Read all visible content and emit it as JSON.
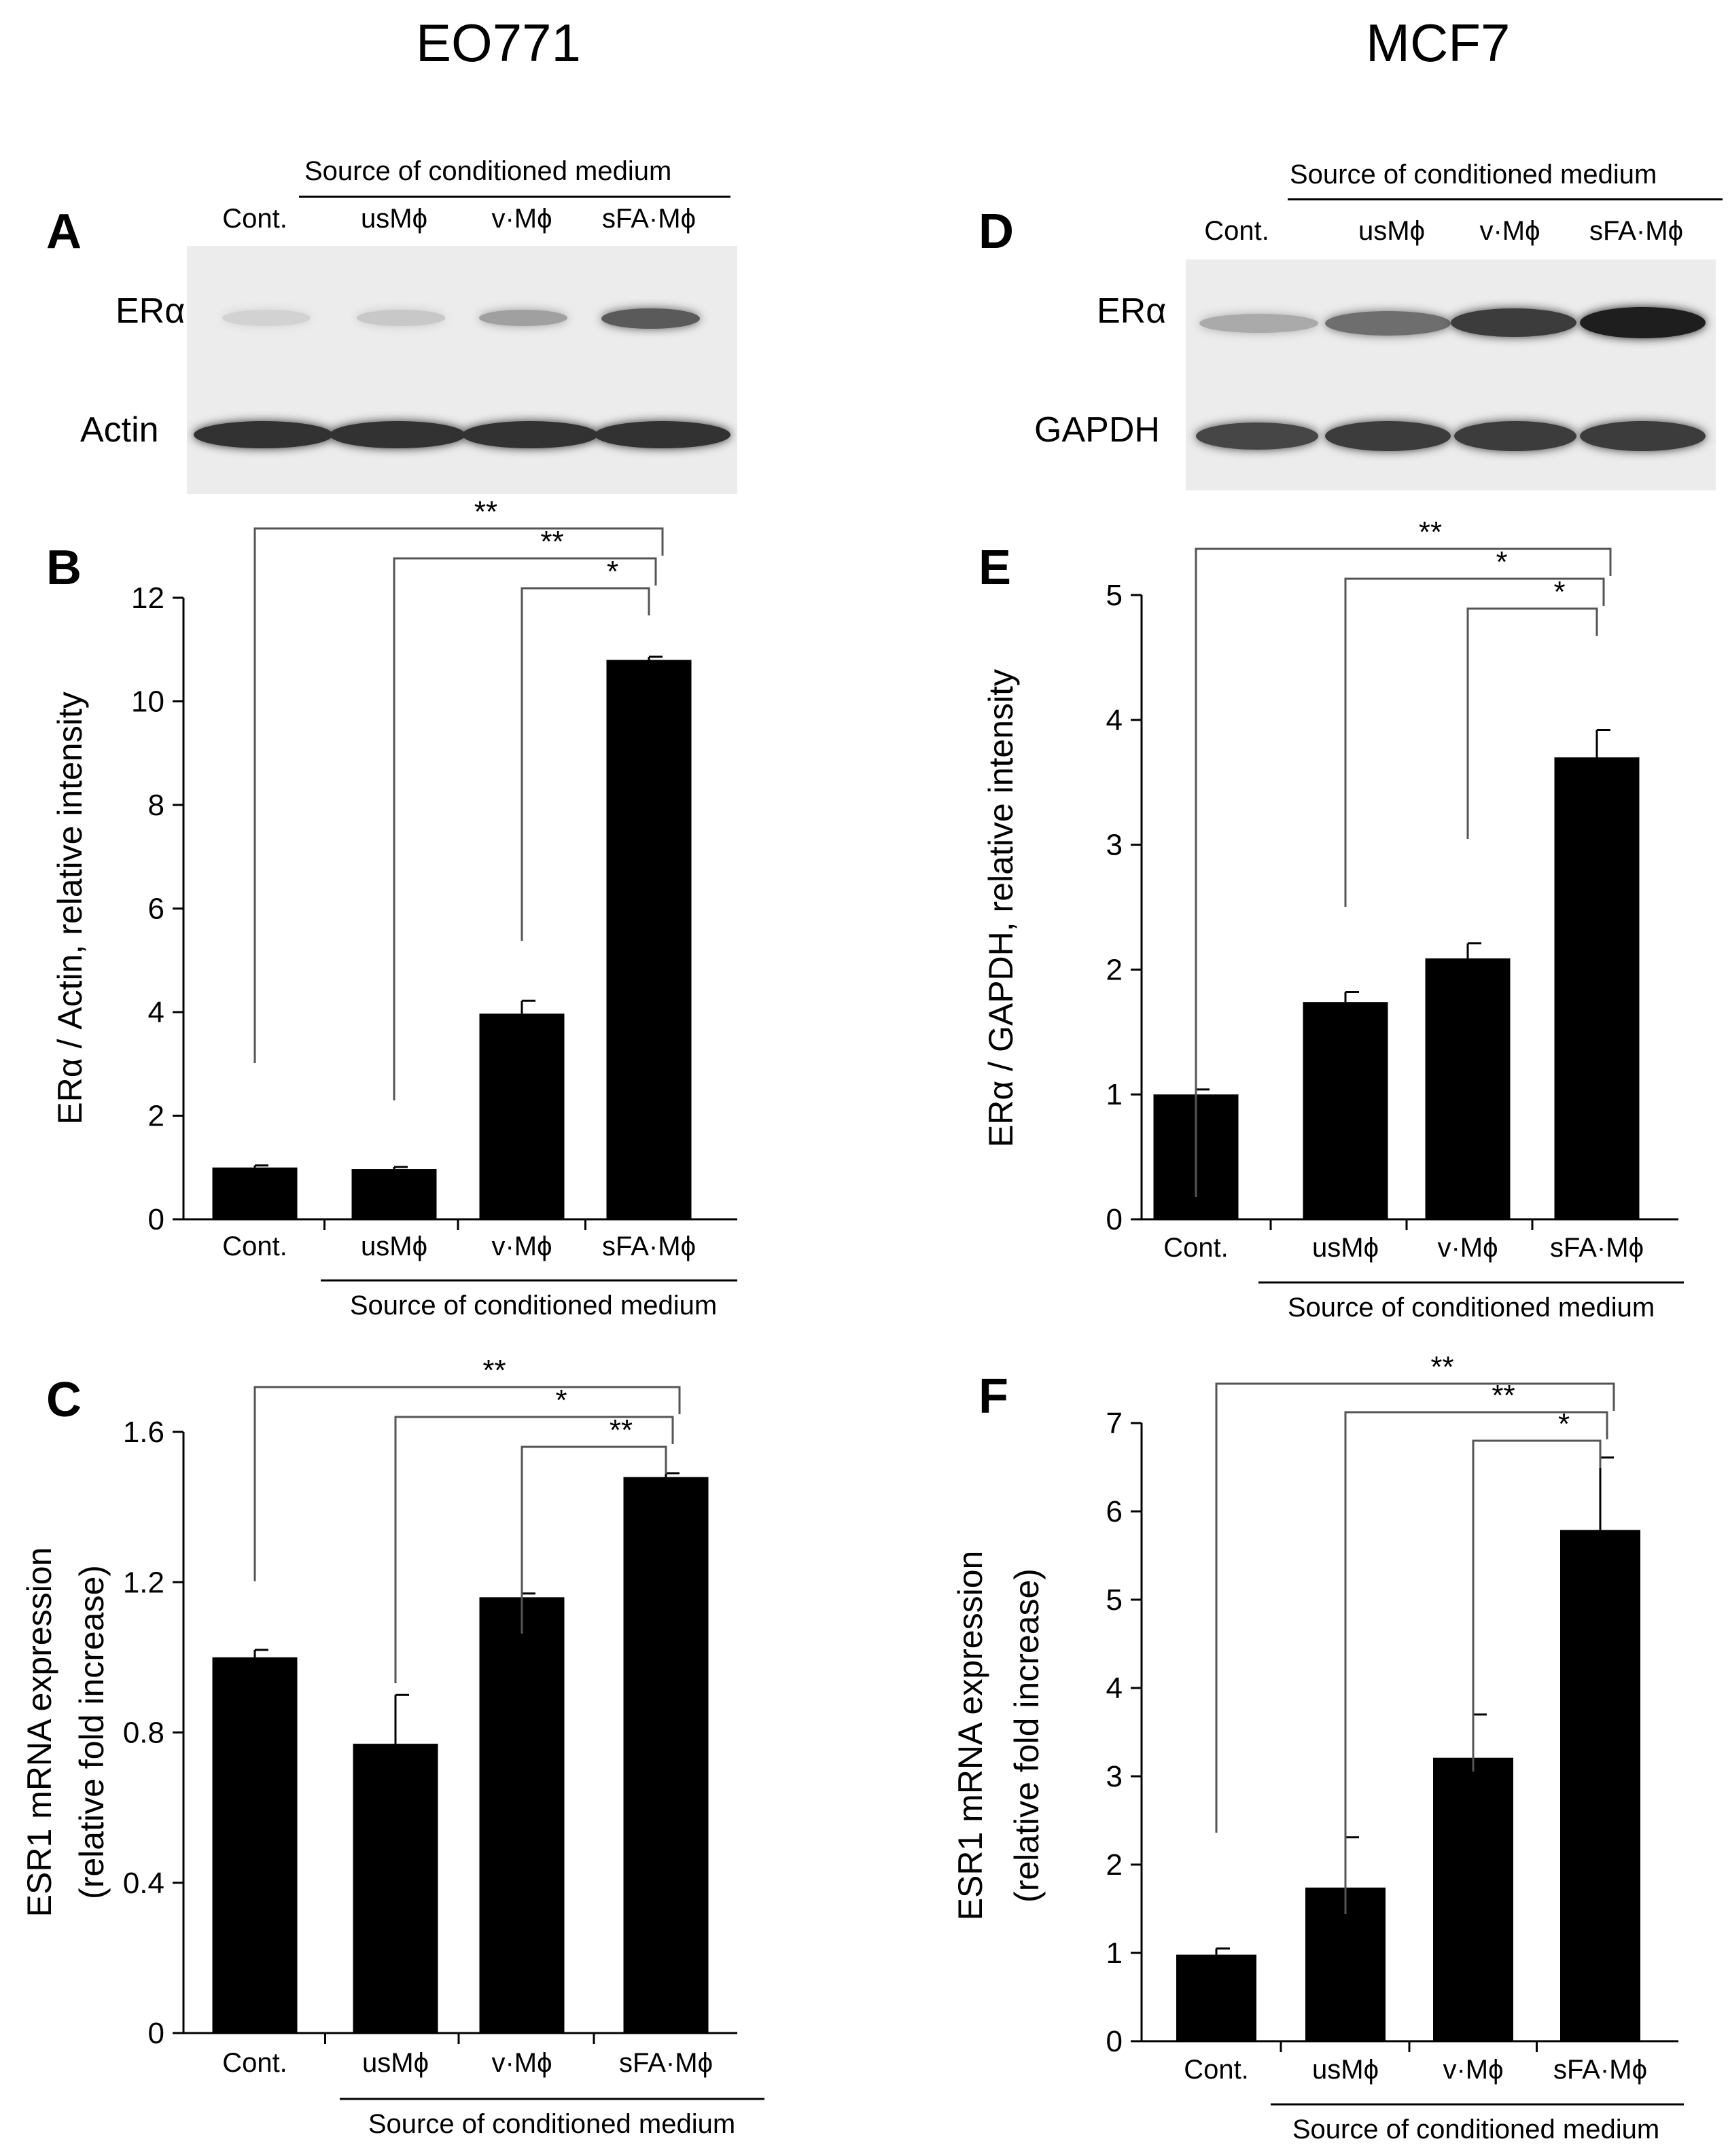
{
  "columns": {
    "left_title": "EO771",
    "right_title": "MCF7"
  },
  "panel_letters": {
    "a": "A",
    "b": "B",
    "c": "C",
    "d": "D",
    "e": "E",
    "f": "F"
  },
  "blots": {
    "A": {
      "header": "Source of conditioned medium",
      "lanes": [
        "Cont.",
        "usMϕ",
        "v·Mϕ",
        "sFA·Mϕ"
      ],
      "rows": [
        {
          "label": "ERα",
          "band_intensity": [
            0.1,
            0.15,
            0.35,
            0.7
          ]
        },
        {
          "label": "Actin",
          "band_intensity": [
            0.9,
            0.9,
            0.9,
            0.9
          ]
        }
      ]
    },
    "D": {
      "header": "Source of conditioned medium",
      "lanes": [
        "Cont.",
        "usMϕ",
        "v·Mϕ",
        "sFA·Mϕ"
      ],
      "rows": [
        {
          "label": "ERα",
          "band_intensity": [
            0.3,
            0.6,
            0.85,
            1.0
          ]
        },
        {
          "label": "GAPDH",
          "band_intensity": [
            0.8,
            0.85,
            0.85,
            0.85
          ]
        }
      ]
    }
  },
  "chart_data": [
    {
      "id": "B",
      "type": "bar",
      "categories": [
        "Cont.",
        "usMϕ",
        "v·Mϕ",
        "sFA·Mϕ"
      ],
      "values": [
        1.0,
        0.97,
        3.97,
        10.8
      ],
      "errors": [
        0.04,
        0.04,
        0.25,
        0.06
      ],
      "ylabel": "ERα / Actin, relative intensity",
      "xlabel": "Source of conditioned medium",
      "ylim": [
        0,
        12
      ],
      "yticks": [
        "0",
        "2",
        "4",
        "6",
        "8",
        "10",
        "12"
      ],
      "significance": [
        {
          "from": 0,
          "to": 3,
          "label": "**"
        },
        {
          "from": 1,
          "to": 3,
          "label": "**"
        },
        {
          "from": 2,
          "to": 3,
          "label": "*"
        }
      ]
    },
    {
      "id": "C",
      "type": "bar",
      "categories": [
        "Cont.",
        "usMϕ",
        "v·Mϕ",
        "sFA·Mϕ"
      ],
      "values": [
        1.0,
        0.77,
        1.16,
        1.48
      ],
      "errors": [
        0.02,
        0.13,
        0.01,
        0.01
      ],
      "ylabel": "ESR1 mRNA expression",
      "ylabel2": "(relative fold increase)",
      "xlabel": "Source of conditioned medium",
      "ylim": [
        0,
        1.6
      ],
      "yticks": [
        "0",
        "0.4",
        "0.8",
        "1.2",
        "1.6"
      ],
      "significance": [
        {
          "from": 0,
          "to": 3,
          "label": "**"
        },
        {
          "from": 1,
          "to": 3,
          "label": "*"
        },
        {
          "from": 2,
          "to": 3,
          "label": "**"
        }
      ]
    },
    {
      "id": "E",
      "type": "bar",
      "categories": [
        "Cont.",
        "usMϕ",
        "v·Mϕ",
        "sFA·Mϕ"
      ],
      "values": [
        1.0,
        1.74,
        2.09,
        3.7
      ],
      "errors": [
        0.04,
        0.08,
        0.12,
        0.22
      ],
      "ylabel": "ERα / GAPDH, relative intensity",
      "xlabel": "Source of conditioned medium",
      "ylim": [
        0,
        5
      ],
      "yticks": [
        "0",
        "1",
        "2",
        "3",
        "4",
        "5"
      ],
      "significance": [
        {
          "from": 0,
          "to": 3,
          "label": "**"
        },
        {
          "from": 1,
          "to": 3,
          "label": "*"
        },
        {
          "from": 2,
          "to": 3,
          "label": "*"
        }
      ]
    },
    {
      "id": "F",
      "type": "bar",
      "categories": [
        "Cont.",
        "usMϕ",
        "v·Mϕ",
        "sFA·Mϕ"
      ],
      "values": [
        0.98,
        1.74,
        3.21,
        5.79
      ],
      "errors": [
        0.07,
        0.57,
        0.49,
        0.82
      ],
      "ylabel": "ESR1 mRNA expression",
      "ylabel2": "(relative fold increase)",
      "xlabel": "Source of conditioned medium",
      "ylim": [
        0,
        7
      ],
      "yticks": [
        "0",
        "1",
        "2",
        "3",
        "4",
        "5",
        "6",
        "7"
      ],
      "significance": [
        {
          "from": 0,
          "to": 3,
          "label": "**"
        },
        {
          "from": 1,
          "to": 3,
          "label": "**"
        },
        {
          "from": 2,
          "to": 3,
          "label": "*"
        }
      ]
    }
  ]
}
